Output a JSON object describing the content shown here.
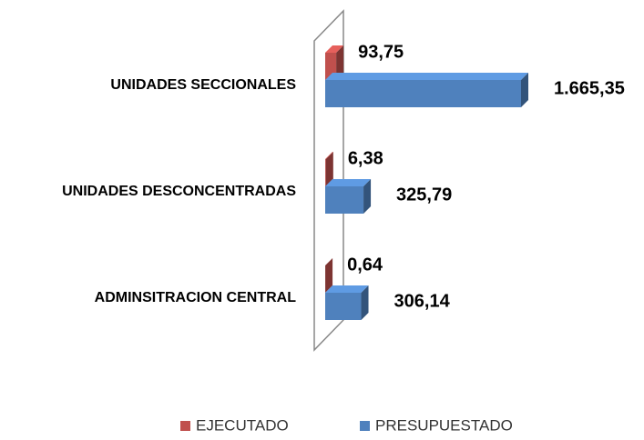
{
  "chart_data": {
    "type": "bar3d_horizontal",
    "categories": [
      "UNIDADES SECCIONALES",
      "UNIDADES DESCONCENTRADAS",
      "ADMINSITRACION CENTRAL"
    ],
    "series": [
      {
        "name": "EJECUTADO",
        "color": "#c0504d",
        "values": [
          93.75,
          6.38,
          0.64
        ],
        "value_labels": [
          "93,75",
          "6,38",
          "0,64"
        ]
      },
      {
        "name": "PRESUPUESTADO",
        "color": "#4f81bd",
        "values": [
          1665.35,
          325.79,
          306.14
        ],
        "value_labels": [
          "1.665,35",
          "325,79",
          "306,14"
        ]
      }
    ]
  }
}
